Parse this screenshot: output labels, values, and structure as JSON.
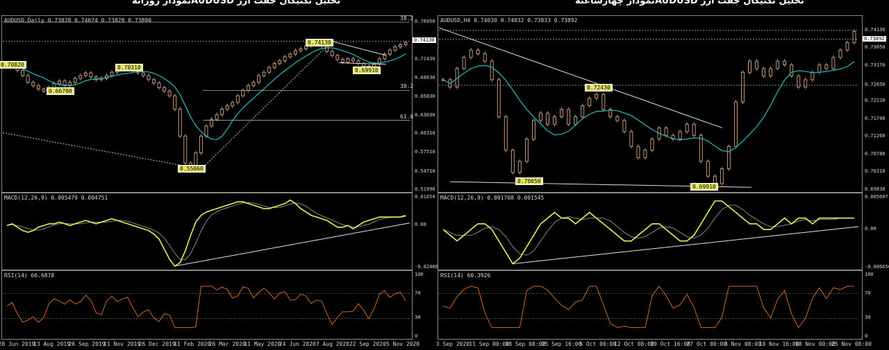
{
  "titles": {
    "left": "تحلیل تکنیکال جفت ارز  AUDUSDنمودار روزانه",
    "right": "تحلیل تکنیکال جفت ارز  AUDUSDنمودار چهارساعته"
  },
  "colors": {
    "candle": "#c79a7d",
    "ma": "#27b2b2",
    "macd": "#f2ee5a",
    "macd_signal": "#8a8a8a",
    "rsi": "#d2691e",
    "line": "#e6e6e6",
    "tag_bg": "#e8e86a"
  },
  "chart_data": [
    {
      "type": "candlestick",
      "timeframe": "Daily",
      "header": "AUDUSD,Daily  0.73828 0.74074 0.73828 0.73890",
      "price_scale": [
        "0.76950",
        "0.74130",
        "0.71430",
        "0.68630",
        "0.65830",
        "0.63030",
        "0.60310",
        "0.57510",
        "0.54710",
        "0.51990"
      ],
      "fib_labels": [
        "38.2",
        "38.2",
        "61.8"
      ],
      "annotations": [
        "0.70820",
        "0.66700",
        "0.70310",
        "0.74130",
        "0.69910",
        "0.55060"
      ],
      "current_price": "0.74130",
      "ylim": [
        0.5199,
        0.7695
      ],
      "close_series": [
        0.708,
        0.706,
        0.698,
        0.69,
        0.68,
        0.675,
        0.67,
        0.667,
        0.672,
        0.678,
        0.682,
        0.676,
        0.68,
        0.686,
        0.69,
        0.694,
        0.688,
        0.684,
        0.686,
        0.69,
        0.695,
        0.7,
        0.703,
        0.701,
        0.697,
        0.694,
        0.69,
        0.684,
        0.679,
        0.672,
        0.667,
        0.66,
        0.64,
        0.6,
        0.56,
        0.551,
        0.575,
        0.6,
        0.615,
        0.625,
        0.632,
        0.64,
        0.645,
        0.65,
        0.66,
        0.668,
        0.675,
        0.68,
        0.69,
        0.695,
        0.702,
        0.708,
        0.712,
        0.718,
        0.722,
        0.727,
        0.73,
        0.734,
        0.738,
        0.741,
        0.734,
        0.726,
        0.72,
        0.714,
        0.71,
        0.715,
        0.712,
        0.708,
        0.704,
        0.699,
        0.707,
        0.715,
        0.722,
        0.728,
        0.733,
        0.736,
        0.739
      ],
      "macd": {
        "header": "MACD(12,26,9) 0.005479 0.004751",
        "scale": [
          "0.01654",
          "0.00",
          "-0.02486"
        ],
        "ylim": [
          -0.02486,
          0.01654
        ],
        "values": [
          0.0,
          0.001,
          -0.001,
          -0.003,
          -0.004,
          -0.003,
          -0.001,
          0.0,
          0.001,
          0.001,
          0.002,
          0.001,
          0.0,
          0.001,
          0.002,
          0.003,
          0.002,
          0.001,
          0.002,
          0.003,
          0.004,
          0.003,
          0.002,
          0.001,
          0.0,
          -0.001,
          -0.002,
          -0.003,
          -0.005,
          -0.008,
          -0.014,
          -0.02,
          -0.024,
          -0.022,
          -0.015,
          -0.006,
          0.002,
          0.006,
          0.008,
          0.009,
          0.01,
          0.011,
          0.012,
          0.013,
          0.014,
          0.014,
          0.013,
          0.012,
          0.011,
          0.01,
          0.01,
          0.011,
          0.012,
          0.013,
          0.015,
          0.013,
          0.01,
          0.008,
          0.006,
          0.005,
          0.004,
          0.003,
          0.001,
          -0.001,
          -0.001,
          0.0,
          -0.002,
          0.0,
          0.002,
          0.003,
          0.004,
          0.005,
          0.005,
          0.005,
          0.005,
          0.005,
          0.006
        ]
      },
      "rsi": {
        "header": "RSI(14) 66.6878",
        "scale": [
          "100",
          "70",
          "30",
          "0"
        ],
        "ylim": [
          0,
          100
        ]
      },
      "x_labels": [
        "28 Jun 2019",
        "13 Aug 2019",
        "26 Sep 2019",
        "11 Nov 2019",
        "26 Dec 2019",
        "11 Feb 2020",
        "26 Mar 2020",
        "11 May 2020",
        "24 Jun 2020",
        "7 Aug 2020",
        "22 Sep 2020",
        "5 Nov 2020"
      ]
    },
    {
      "type": "candlestick",
      "timeframe": "H4",
      "header": "AUDUSD,H4  0.74030 0.74032 0.73833 0.73892",
      "price_scale": [
        "0.74130",
        "0.73892",
        "0.73650",
        "0.73170",
        "0.72650",
        "0.72220",
        "0.71740",
        "0.71260",
        "0.70780",
        "0.70310",
        "0.69830"
      ],
      "annotations": [
        "0.72430",
        "0.70050",
        "0.69910"
      ],
      "current_price": "0.73892",
      "ylim": [
        0.6983,
        0.7435
      ],
      "close_series": [
        0.728,
        0.726,
        0.731,
        0.734,
        0.736,
        0.735,
        0.733,
        0.728,
        0.718,
        0.709,
        0.703,
        0.706,
        0.712,
        0.717,
        0.719,
        0.716,
        0.718,
        0.72,
        0.716,
        0.718,
        0.721,
        0.723,
        0.724,
        0.72,
        0.718,
        0.717,
        0.714,
        0.71,
        0.707,
        0.709,
        0.712,
        0.715,
        0.713,
        0.712,
        0.714,
        0.716,
        0.713,
        0.706,
        0.702,
        0.7,
        0.704,
        0.71,
        0.722,
        0.73,
        0.733,
        0.731,
        0.729,
        0.731,
        0.733,
        0.732,
        0.729,
        0.726,
        0.728,
        0.73,
        0.732,
        0.731,
        0.734,
        0.736,
        0.738,
        0.741
      ],
      "macd": {
        "header": "MACD(12,26,9) 0.001708 0.001545",
        "scale": [
          "0.005607",
          "0.00",
          "-0.006656"
        ],
        "ylim": [
          -0.006656,
          0.005607
        ],
        "values": [
          0.0,
          -0.001,
          -0.002,
          -0.001,
          0.0,
          0.001,
          0.001,
          0.0,
          -0.002,
          -0.004,
          -0.006,
          -0.005,
          -0.003,
          -0.001,
          0.001,
          0.002,
          0.003,
          0.002,
          0.002,
          0.001,
          0.002,
          0.003,
          0.002,
          0.001,
          0.0,
          -0.001,
          -0.002,
          -0.002,
          -0.001,
          0.0,
          0.001,
          0.001,
          0.0,
          -0.001,
          -0.002,
          -0.002,
          -0.001,
          0.001,
          0.003,
          0.005,
          0.005,
          0.004,
          0.003,
          0.002,
          0.001,
          0.001,
          0.0,
          0.0,
          0.001,
          0.002,
          0.001,
          0.002,
          0.002,
          0.001,
          0.002,
          0.002,
          0.002,
          0.002,
          0.002,
          0.002
        ]
      },
      "rsi": {
        "header": "RSI(14) 60.3926",
        "scale": [
          "100",
          "70",
          "30",
          "0"
        ],
        "ylim": [
          0,
          100
        ]
      },
      "x_labels": [
        "3 Sep 2020",
        "11 Sep 00:00",
        "18 Sep 08:00",
        "25 Sep 16:00",
        "5 Oct 00:00",
        "12 Oct 08:00",
        "19 Oct 16:00",
        "27 Oct 00:00",
        "3 Nov 08:00",
        "10 Nov 16:00",
        "18 Nov 00:00",
        "25 Nov 08:00"
      ]
    }
  ]
}
